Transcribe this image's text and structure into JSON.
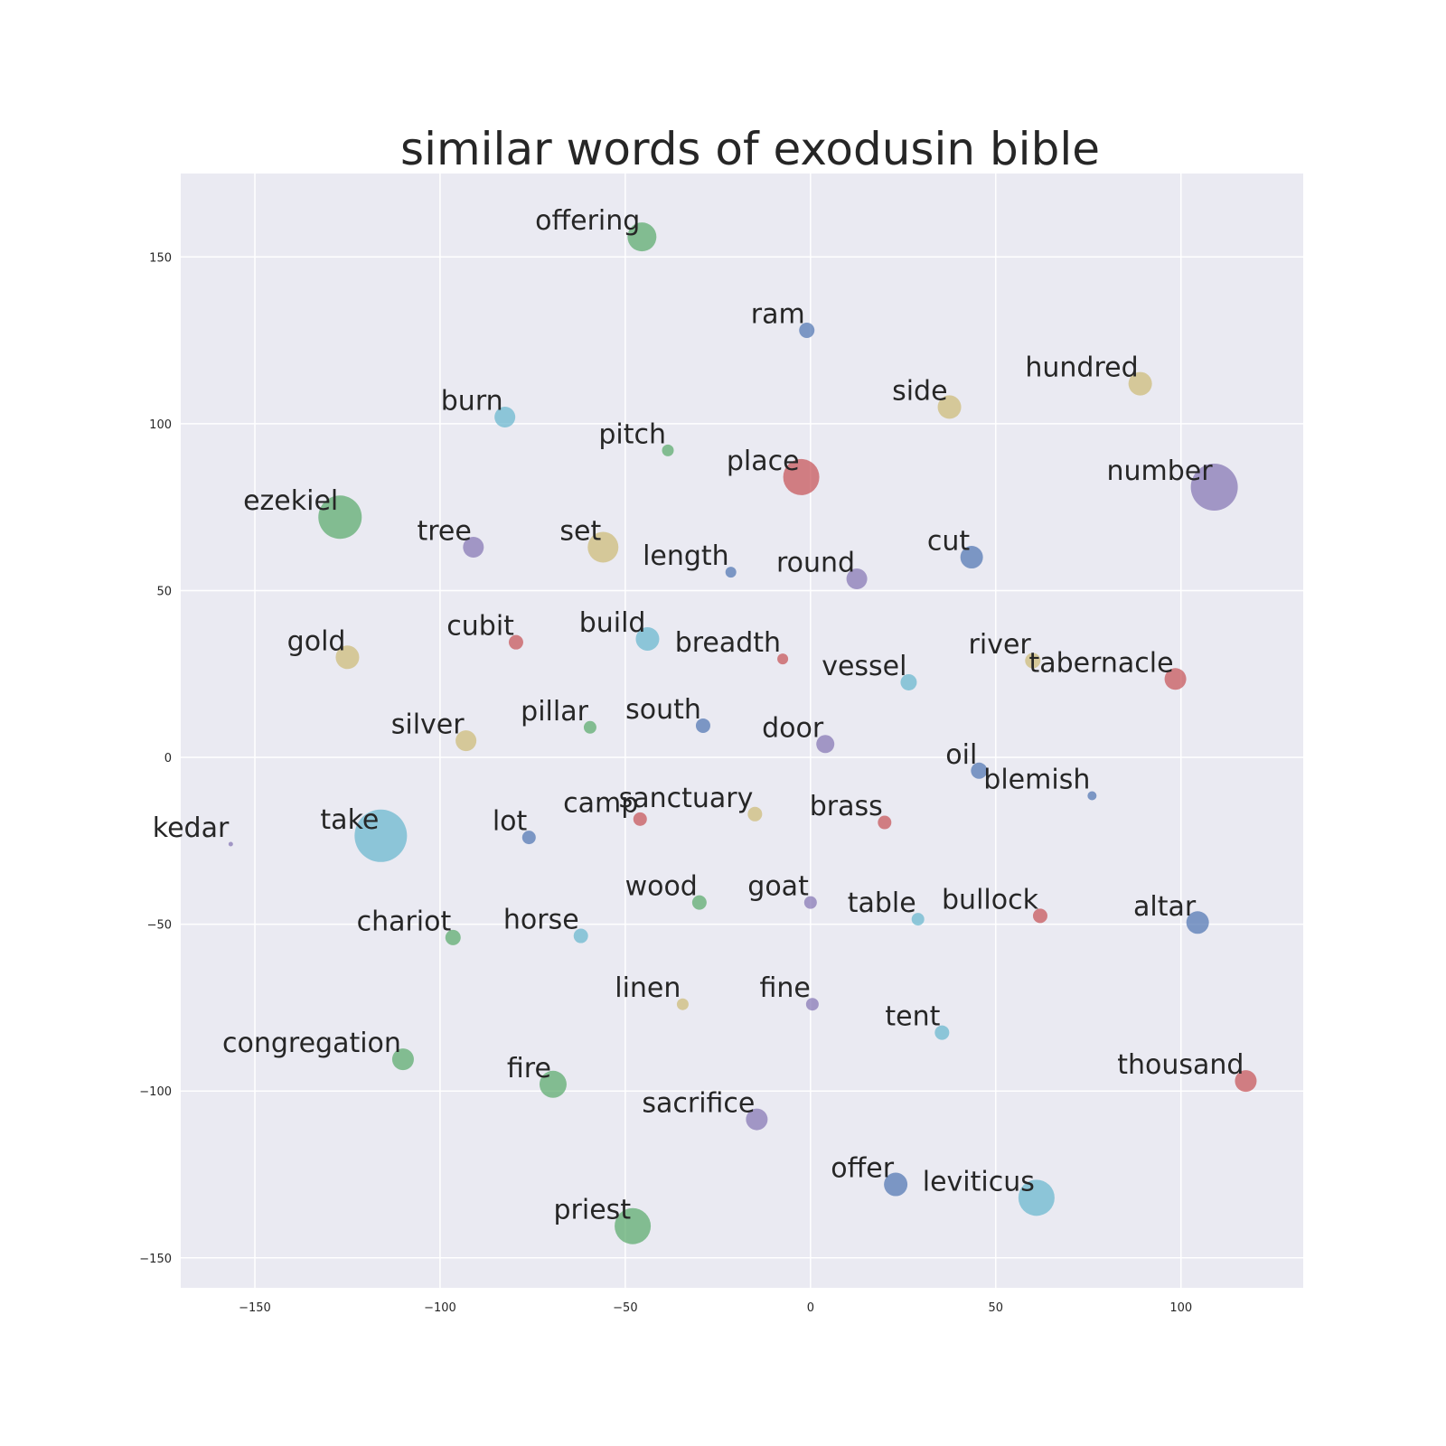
{
  "chart_data": {
    "type": "scatter",
    "title": "similar words of exodusin bible",
    "xlabel": "",
    "ylabel": "",
    "xlim": [
      -170,
      133
    ],
    "ylim": [
      -159,
      175
    ],
    "grid": true,
    "x_ticks": [
      -150,
      -100,
      -50,
      0,
      50,
      100
    ],
    "y_ticks": [
      -150,
      -100,
      -50,
      0,
      50,
      100,
      150
    ],
    "tick_labels": {
      "x": [
        "−150",
        "−100",
        "−50",
        "0",
        "50",
        "100"
      ],
      "y": [
        "−150",
        "−100",
        "−50",
        "0",
        "50",
        "100",
        "150"
      ]
    },
    "colors": {
      "blue": "#4c72b0",
      "green": "#55a868",
      "red": "#c44e52",
      "purple": "#8172b2",
      "yellow": "#ccb974",
      "cyan": "#64b5cd",
      "plot_bg": "#eaeaf2",
      "grid": "#ffffff",
      "text": "#262626"
    },
    "points": [
      {
        "word": "offering",
        "x": -45.5,
        "y": 156,
        "size": 16,
        "color": "green"
      },
      {
        "word": "ram",
        "x": -1,
        "y": 128,
        "size": 8.5,
        "color": "blue"
      },
      {
        "word": "hundred",
        "x": 89,
        "y": 112,
        "size": 13,
        "color": "yellow"
      },
      {
        "word": "burn",
        "x": -82.5,
        "y": 102,
        "size": 11.5,
        "color": "cyan"
      },
      {
        "word": "side",
        "x": 37.5,
        "y": 105,
        "size": 13,
        "color": "yellow"
      },
      {
        "word": "pitch",
        "x": -38.5,
        "y": 92,
        "size": 6.5,
        "color": "green"
      },
      {
        "word": "place",
        "x": -2.5,
        "y": 84,
        "size": 20,
        "color": "red"
      },
      {
        "word": "number",
        "x": 109,
        "y": 81,
        "size": 26,
        "color": "purple"
      },
      {
        "word": "ezekiel",
        "x": -127,
        "y": 72,
        "size": 24,
        "color": "green"
      },
      {
        "word": "tree",
        "x": -91,
        "y": 63,
        "size": 11.5,
        "color": "purple"
      },
      {
        "word": "set",
        "x": -56,
        "y": 63,
        "size": 17,
        "color": "yellow"
      },
      {
        "word": "length",
        "x": -21.5,
        "y": 55.5,
        "size": 6,
        "color": "blue"
      },
      {
        "word": "round",
        "x": 12.5,
        "y": 53.5,
        "size": 11.5,
        "color": "purple"
      },
      {
        "word": "cut",
        "x": 43.5,
        "y": 60,
        "size": 12.5,
        "color": "blue"
      },
      {
        "word": "gold",
        "x": -125,
        "y": 30,
        "size": 13,
        "color": "yellow"
      },
      {
        "word": "cubit",
        "x": -79.5,
        "y": 34.5,
        "size": 8,
        "color": "red"
      },
      {
        "word": "build",
        "x": -44,
        "y": 35.5,
        "size": 13,
        "color": "cyan"
      },
      {
        "word": "breadth",
        "x": -7.5,
        "y": 29.5,
        "size": 6,
        "color": "red"
      },
      {
        "word": "vessel",
        "x": 26.5,
        "y": 22.5,
        "size": 9,
        "color": "cyan"
      },
      {
        "word": "river",
        "x": 60,
        "y": 29,
        "size": 8.5,
        "color": "yellow"
      },
      {
        "word": "tabernacle",
        "x": 98.5,
        "y": 23.5,
        "size": 12,
        "color": "red"
      },
      {
        "word": "silver",
        "x": -93,
        "y": 5,
        "size": 11.5,
        "color": "yellow"
      },
      {
        "word": "pillar",
        "x": -59.5,
        "y": 9,
        "size": 7,
        "color": "green"
      },
      {
        "word": "south",
        "x": -29,
        "y": 9.5,
        "size": 8,
        "color": "blue"
      },
      {
        "word": "door",
        "x": 4,
        "y": 4,
        "size": 10,
        "color": "purple"
      },
      {
        "word": "oil",
        "x": 45.5,
        "y": -4,
        "size": 9,
        "color": "blue"
      },
      {
        "word": "blemish",
        "x": 76,
        "y": -11.5,
        "size": 5,
        "color": "blue"
      },
      {
        "word": "kedar",
        "x": -156.5,
        "y": -26,
        "size": 2.5,
        "color": "purple"
      },
      {
        "word": "take",
        "x": -116,
        "y": -23.5,
        "size": 29,
        "color": "cyan"
      },
      {
        "word": "lot",
        "x": -76,
        "y": -24,
        "size": 7.5,
        "color": "blue"
      },
      {
        "word": "camp",
        "x": -46,
        "y": -18.5,
        "size": 7.5,
        "color": "red"
      },
      {
        "word": "sanctuary",
        "x": -15,
        "y": -17,
        "size": 8,
        "color": "yellow"
      },
      {
        "word": "brass",
        "x": 20,
        "y": -19.5,
        "size": 7.5,
        "color": "red"
      },
      {
        "word": "wood",
        "x": -30,
        "y": -43.5,
        "size": 8,
        "color": "green"
      },
      {
        "word": "goat",
        "x": 0,
        "y": -43.5,
        "size": 7,
        "color": "purple"
      },
      {
        "word": "table",
        "x": 29,
        "y": -48.5,
        "size": 7,
        "color": "cyan"
      },
      {
        "word": "bullock",
        "x": 62,
        "y": -47.5,
        "size": 8,
        "color": "red"
      },
      {
        "word": "altar",
        "x": 104.5,
        "y": -49.5,
        "size": 12.5,
        "color": "blue"
      },
      {
        "word": "chariot",
        "x": -96.5,
        "y": -54,
        "size": 8.5,
        "color": "green"
      },
      {
        "word": "horse",
        "x": -62,
        "y": -53.5,
        "size": 8,
        "color": "cyan"
      },
      {
        "word": "linen",
        "x": -34.5,
        "y": -74,
        "size": 6.5,
        "color": "yellow"
      },
      {
        "word": "fine",
        "x": 0.5,
        "y": -74,
        "size": 7,
        "color": "purple"
      },
      {
        "word": "tent",
        "x": 35.5,
        "y": -82.5,
        "size": 8,
        "color": "cyan"
      },
      {
        "word": "congregation",
        "x": -110,
        "y": -90.5,
        "size": 12,
        "color": "green"
      },
      {
        "word": "fire",
        "x": -69.5,
        "y": -98,
        "size": 15,
        "color": "green"
      },
      {
        "word": "thousand",
        "x": 117.5,
        "y": -97,
        "size": 12,
        "color": "red"
      },
      {
        "word": "sacrifice",
        "x": -14.5,
        "y": -108.5,
        "size": 12,
        "color": "purple"
      },
      {
        "word": "offer",
        "x": 23,
        "y": -128,
        "size": 13,
        "color": "blue"
      },
      {
        "word": "leviticus",
        "x": 61,
        "y": -132,
        "size": 20,
        "color": "cyan"
      },
      {
        "word": "priest",
        "x": -48,
        "y": -140.5,
        "size": 20,
        "color": "green"
      }
    ]
  }
}
